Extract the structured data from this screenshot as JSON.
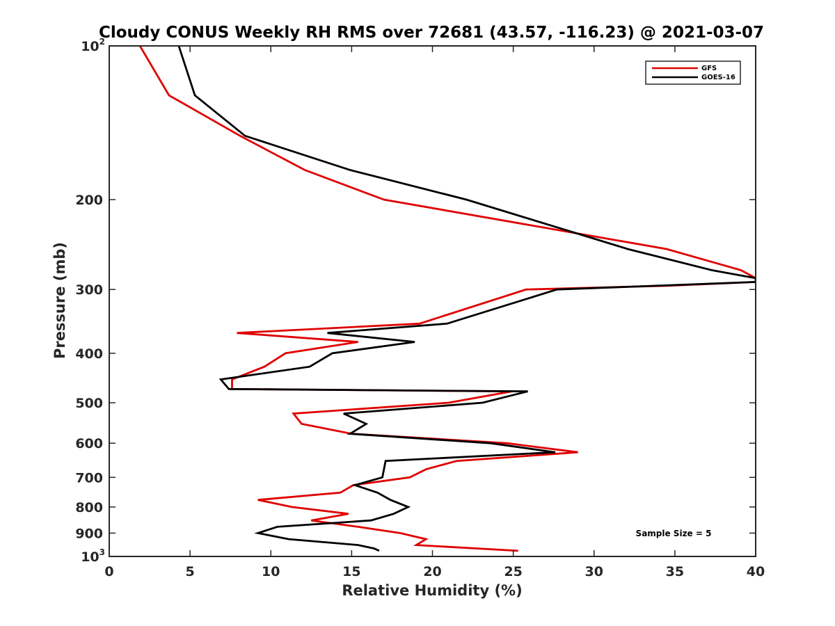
{
  "chart_data": {
    "type": "line",
    "title": "Cloudy CONUS Weekly RH RMS over 72681 (43.57, -116.23) @ 2021-03-07",
    "xlabel": "Relative Humidity (%)",
    "ylabel": "Pressure (mb)",
    "xlim": [
      0,
      40
    ],
    "ylim": [
      100,
      1000
    ],
    "y_scale": "log",
    "y_reversed": true,
    "grid": false,
    "legend_position": "top-right",
    "x_ticks": [
      0,
      5,
      10,
      15,
      20,
      25,
      30,
      35,
      40
    ],
    "y_ticks": [
      {
        "value": 100,
        "base": "10",
        "exp": "2"
      },
      {
        "value": 200,
        "label": "200"
      },
      {
        "value": 300,
        "label": "300"
      },
      {
        "value": 400,
        "label": "400"
      },
      {
        "value": 500,
        "label": "500"
      },
      {
        "value": 600,
        "label": "600"
      },
      {
        "value": 700,
        "label": "700"
      },
      {
        "value": 800,
        "label": "800"
      },
      {
        "value": 900,
        "label": "900"
      },
      {
        "value": 1000,
        "base": "10",
        "exp": "3"
      }
    ],
    "series": [
      {
        "name": "GFS",
        "color": "#e00000",
        "points": [
          [
            1.9,
            100
          ],
          [
            3.7,
            125
          ],
          [
            8.1,
            150
          ],
          [
            12.1,
            175
          ],
          [
            17.0,
            200
          ],
          [
            34.5,
            250
          ],
          [
            39.1,
            275
          ],
          [
            40.0,
            285
          ],
          [
            40.0,
            290
          ],
          [
            34.5,
            295
          ],
          [
            25.8,
            300
          ],
          [
            19.2,
            350
          ],
          [
            7.9,
            365
          ],
          [
            15.4,
            380
          ],
          [
            10.9,
            400
          ],
          [
            9.6,
            425
          ],
          [
            7.6,
            450
          ],
          [
            7.6,
            470
          ],
          [
            24.9,
            475
          ],
          [
            21.0,
            500
          ],
          [
            11.4,
            525
          ],
          [
            11.9,
            550
          ],
          [
            15.0,
            575
          ],
          [
            24.6,
            600
          ],
          [
            29.0,
            625
          ],
          [
            21.5,
            650
          ],
          [
            19.6,
            675
          ],
          [
            18.6,
            700
          ],
          [
            15.1,
            725
          ],
          [
            14.3,
            750
          ],
          [
            9.2,
            775
          ],
          [
            11.3,
            800
          ],
          [
            14.8,
            825
          ],
          [
            12.5,
            850
          ],
          [
            15.4,
            875
          ],
          [
            18.0,
            900
          ],
          [
            19.6,
            925
          ],
          [
            19.0,
            950
          ],
          [
            25.3,
            975
          ]
        ]
      },
      {
        "name": "GOES-16",
        "color": "#000000",
        "points": [
          [
            4.3,
            100
          ],
          [
            5.3,
            125
          ],
          [
            8.4,
            150
          ],
          [
            14.9,
            175
          ],
          [
            22.1,
            200
          ],
          [
            32.1,
            250
          ],
          [
            37.3,
            275
          ],
          [
            40.0,
            285
          ],
          [
            40.0,
            290
          ],
          [
            27.7,
            300
          ],
          [
            20.9,
            350
          ],
          [
            13.5,
            365
          ],
          [
            18.9,
            380
          ],
          [
            13.8,
            400
          ],
          [
            12.4,
            425
          ],
          [
            6.9,
            450
          ],
          [
            7.4,
            470
          ],
          [
            25.9,
            475
          ],
          [
            23.1,
            500
          ],
          [
            14.5,
            525
          ],
          [
            15.9,
            550
          ],
          [
            14.9,
            575
          ],
          [
            23.6,
            600
          ],
          [
            27.6,
            625
          ],
          [
            17.1,
            650
          ],
          [
            17.0,
            675
          ],
          [
            16.9,
            700
          ],
          [
            15.2,
            725
          ],
          [
            16.6,
            750
          ],
          [
            17.4,
            775
          ],
          [
            18.5,
            800
          ],
          [
            17.6,
            825
          ],
          [
            16.2,
            850
          ],
          [
            10.4,
            875
          ],
          [
            9.2,
            900
          ],
          [
            11.1,
            925
          ],
          [
            15.4,
            950
          ],
          [
            16.4,
            965
          ],
          [
            16.7,
            975
          ]
        ]
      }
    ],
    "annotations": [
      {
        "text": "Sample Size = 5"
      }
    ]
  }
}
